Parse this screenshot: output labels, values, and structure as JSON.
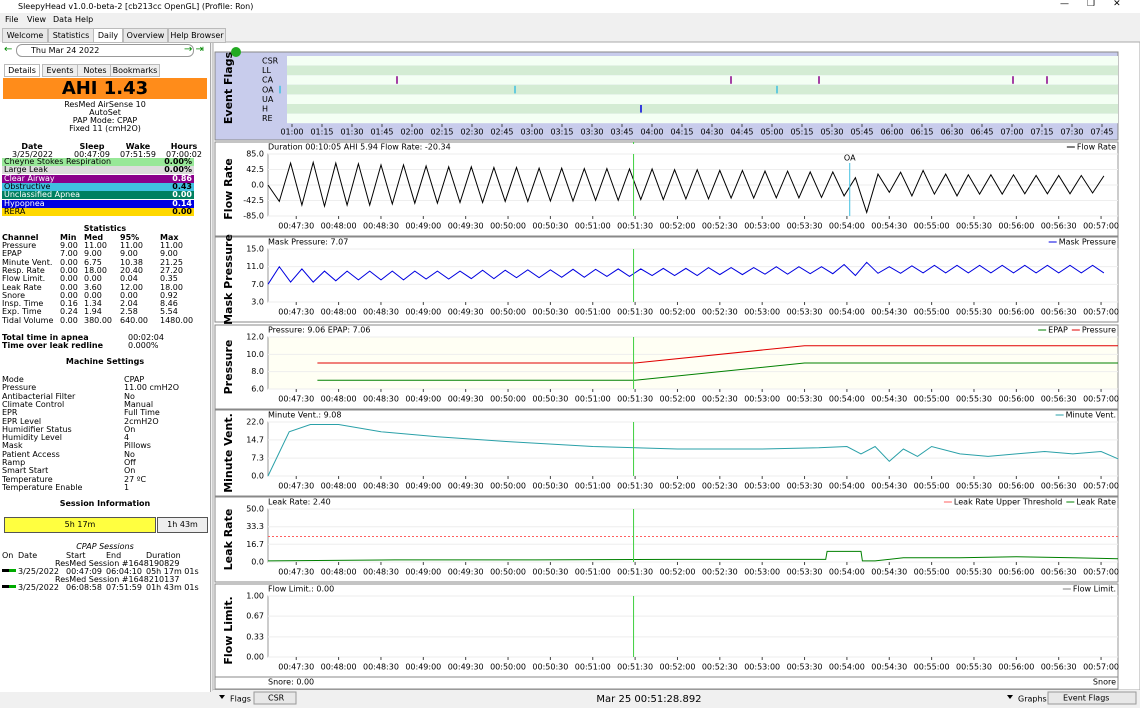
{
  "window": {
    "title": "SleepyHead v1.0.0-beta-2 [cb213cc OpenGL] (Profile: Ron)"
  },
  "menu": [
    "File",
    "View",
    "Data",
    "Help"
  ],
  "tabs": [
    "Welcome",
    "Statistics",
    "Daily",
    "Overview",
    "Help Browser"
  ],
  "left": {
    "date": "Thu Mar 24 2022",
    "subtabs": [
      "Details",
      "Events",
      "Notes",
      "Bookmarks"
    ],
    "ahi": "AHI 1.43",
    "device": [
      "ResMed AirSense 10",
      "AutoSet",
      "PAP Mode: CPAP",
      "Fixed 11 (cmH2O)"
    ],
    "sleep_table": {
      "header": [
        "Date",
        "Sleep",
        "Wake",
        "Hours"
      ],
      "row": [
        "3/25/2022",
        "00:47:09",
        "07:51:59",
        "07:00:02"
      ]
    },
    "events": [
      {
        "name": "Cheyne Stokes Respiration",
        "value": "0.00%",
        "color": "#98e898"
      },
      {
        "name": "Large Leak",
        "value": "0.00%",
        "color": "#dcdcdc"
      },
      {
        "name": "Clear Airway",
        "value": "0.86",
        "color": "#8b008b"
      },
      {
        "name": "Obstructive",
        "value": "0.43",
        "color": "#40c0e0"
      },
      {
        "name": "Unclassified Apnea",
        "value": "0.00",
        "color": "#008060"
      },
      {
        "name": "Hypopnea",
        "value": "0.14",
        "color": "#0000e0"
      },
      {
        "name": "RERA",
        "value": "0.00",
        "color": "#ffd800"
      }
    ],
    "statistics": {
      "title": "Statistics",
      "header": [
        "Channel",
        "Min",
        "Med",
        "95%",
        "Max"
      ],
      "rows": [
        [
          "Pressure",
          "9.00",
          "11.00",
          "11.00",
          "11.00"
        ],
        [
          "EPAP",
          "7.00",
          "9.00",
          "9.00",
          "9.00"
        ],
        [
          "Minute Vent.",
          "0.00",
          "6.75",
          "10.38",
          "21.25"
        ],
        [
          "Resp. Rate",
          "0.00",
          "18.00",
          "20.40",
          "27.20"
        ],
        [
          "Flow Limit.",
          "0.00",
          "0.00",
          "0.04",
          "0.35"
        ],
        [
          "Leak Rate",
          "0.00",
          "3.60",
          "12.00",
          "18.00"
        ],
        [
          "Snore",
          "0.00",
          "0.00",
          "0.00",
          "0.92"
        ],
        [
          "Insp. Time",
          "0.16",
          "1.34",
          "2.04",
          "8.46"
        ],
        [
          "Exp. Time",
          "0.24",
          "1.94",
          "2.58",
          "5.54"
        ],
        [
          "Tidal Volume",
          "0.00",
          "380.00",
          "640.00",
          "1480.00"
        ]
      ]
    },
    "totals": [
      [
        "Total time in apnea",
        "00:02:04"
      ],
      [
        "Time over leak redline",
        "0.000%"
      ]
    ],
    "machine": {
      "title": "Machine Settings",
      "rows": [
        [
          "Mode",
          "CPAP"
        ],
        [
          "Pressure",
          "11.00 cmH2O"
        ],
        [
          "Antibacterial Filter",
          "No"
        ],
        [
          "Climate Control",
          "Manual"
        ],
        [
          "EPR",
          "Full Time"
        ],
        [
          "EPR Level",
          "2cmH2O"
        ],
        [
          "Humidifier Status",
          "On"
        ],
        [
          "Humidity Level",
          "4"
        ],
        [
          "Mask",
          "Pillows"
        ],
        [
          "Patient Access",
          "No"
        ],
        [
          "Ramp",
          "Off"
        ],
        [
          "Smart Start",
          "On"
        ],
        [
          "Temperature",
          "27 ºC"
        ],
        [
          "Temperature Enable",
          "1"
        ]
      ]
    },
    "session_info": {
      "title": "Session Information",
      "bars": [
        "5h 17m",
        "1h 43m"
      ]
    },
    "sessions": {
      "title": "CPAP Sessions",
      "header": [
        "On",
        "Date",
        "Start",
        "End",
        "Duration"
      ],
      "rows": [
        {
          "name": "ResMed Session #1648190829",
          "cells": [
            "3/25/2022",
            "00:47:09",
            "06:04:10",
            "05h 17m 01s"
          ]
        },
        {
          "name": "ResMed Session #1648210137",
          "cells": [
            "3/25/2022",
            "06:08:58",
            "07:51:59",
            "01h 43m 01s"
          ]
        }
      ]
    }
  },
  "event_flags": {
    "label": "Event Flags",
    "rows": [
      "CSR",
      "LL",
      "CA",
      "OA",
      "UA",
      "H",
      "RE"
    ],
    "xlim": [
      57.5,
      473
    ],
    "xticks": [
      {
        "value": 60,
        "label": "01:00"
      },
      {
        "value": 75,
        "label": "01:15"
      },
      {
        "value": 90,
        "label": "01:30"
      },
      {
        "value": 105,
        "label": "01:45"
      },
      {
        "value": 120,
        "label": "02:00"
      },
      {
        "value": 135,
        "label": "02:15"
      },
      {
        "value": 150,
        "label": "02:30"
      },
      {
        "value": 165,
        "label": "02:45"
      },
      {
        "value": 180,
        "label": "03:00"
      },
      {
        "value": 195,
        "label": "03:15"
      },
      {
        "value": 210,
        "label": "03:30"
      },
      {
        "value": 225,
        "label": "03:45"
      },
      {
        "value": 240,
        "label": "04:00"
      },
      {
        "value": 255,
        "label": "04:15"
      },
      {
        "value": 270,
        "label": "04:30"
      },
      {
        "value": 285,
        "label": "04:45"
      },
      {
        "value": 300,
        "label": "05:00"
      },
      {
        "value": 315,
        "label": "05:15"
      },
      {
        "value": 330,
        "label": "05:30"
      },
      {
        "value": 345,
        "label": "05:45"
      },
      {
        "value": 360,
        "label": "06:00"
      },
      {
        "value": 375,
        "label": "06:15"
      },
      {
        "value": 390,
        "label": "06:30"
      },
      {
        "value": 405,
        "label": "06:45"
      },
      {
        "value": 420,
        "label": "07:00"
      },
      {
        "value": 435,
        "label": "07:15"
      },
      {
        "value": 450,
        "label": "07:30"
      },
      {
        "value": 465,
        "label": "07:45"
      }
    ],
    "flags": [
      {
        "row": 2,
        "t": 112.5,
        "color": "#8b008b"
      },
      {
        "row": 2,
        "t": 279.5,
        "color": "#8b008b"
      },
      {
        "row": 2,
        "t": 323.5,
        "color": "#8b008b"
      },
      {
        "row": 2,
        "t": 420.5,
        "color": "#8b008b"
      },
      {
        "row": 2,
        "t": 437.5,
        "color": "#8b008b"
      },
      {
        "row": 3,
        "t": 54,
        "color": "#40c0e0"
      },
      {
        "row": 3,
        "t": 171.5,
        "color": "#40c0e0"
      },
      {
        "row": 3,
        "t": 302.5,
        "color": "#40c0e0"
      },
      {
        "row": 5,
        "t": 234.5,
        "color": "#0000e0"
      }
    ]
  },
  "time_axis": {
    "xlim": [
      10,
      612
    ],
    "cursor": 268.9,
    "xticks": [
      {
        "value": 30,
        "label": "00:47:30"
      },
      {
        "value": 60,
        "label": "00:48:00"
      },
      {
        "value": 90,
        "label": "00:48:30"
      },
      {
        "value": 120,
        "label": "00:49:00"
      },
      {
        "value": 150,
        "label": "00:49:30"
      },
      {
        "value": 180,
        "label": "00:50:00"
      },
      {
        "value": 210,
        "label": "00:50:30"
      },
      {
        "value": 240,
        "label": "00:51:00"
      },
      {
        "value": 270,
        "label": "00:51:30"
      },
      {
        "value": 300,
        "label": "00:52:00"
      },
      {
        "value": 330,
        "label": "00:52:30"
      },
      {
        "value": 360,
        "label": "00:53:00"
      },
      {
        "value": 390,
        "label": "00:53:30"
      },
      {
        "value": 420,
        "label": "00:54:00"
      },
      {
        "value": 450,
        "label": "00:54:30"
      },
      {
        "value": 480,
        "label": "00:55:00"
      },
      {
        "value": 510,
        "label": "00:55:30"
      },
      {
        "value": 540,
        "label": "00:56:00"
      },
      {
        "value": 570,
        "label": "00:56:30"
      },
      {
        "value": 600,
        "label": "00:57:00"
      }
    ]
  },
  "graphs": [
    {
      "label": "Flow Rate",
      "header": "Duration 00:10:05 AHI 5.94 Flow Rate: -20.34",
      "ylim": [
        -85,
        85
      ],
      "yticks": [
        {
          "value": 85,
          "label": "85.0"
        },
        {
          "value": 42.5,
          "label": "42.5"
        },
        {
          "value": 0,
          "label": "0.0"
        },
        {
          "value": -42.5,
          "label": "-42.5"
        },
        {
          "value": -85,
          "label": "-85.0"
        }
      ],
      "annotation": {
        "text": "OA",
        "t": 422
      },
      "series": [
        {
          "name": "Flow Rate",
          "color": "#000000",
          "x": [
            10,
            18,
            26,
            34,
            42,
            50,
            58,
            66,
            74,
            82,
            90,
            98,
            106,
            114,
            122,
            130,
            138,
            146,
            154,
            162,
            170,
            178,
            186,
            194,
            202,
            210,
            218,
            226,
            234,
            242,
            250,
            258,
            266,
            274,
            282,
            290,
            298,
            306,
            314,
            322,
            330,
            338,
            346,
            354,
            362,
            370,
            378,
            386,
            394,
            402,
            410,
            418,
            426,
            434,
            442,
            450,
            458,
            466,
            474,
            482,
            490,
            498,
            506,
            514,
            522,
            530,
            538,
            546,
            554,
            562,
            570,
            578,
            586,
            594,
            602
          ],
          "values": [
            0,
            -45,
            60,
            -55,
            62,
            -58,
            60,
            -55,
            58,
            -55,
            55,
            -52,
            55,
            -50,
            52,
            -50,
            50,
            -48,
            50,
            -48,
            48,
            -45,
            48,
            -45,
            46,
            -44,
            46,
            -44,
            45,
            -42,
            45,
            -42,
            44,
            -40,
            44,
            -40,
            42,
            -38,
            42,
            -38,
            40,
            -36,
            40,
            -36,
            38,
            -35,
            38,
            -35,
            36,
            -34,
            36,
            -30,
            20,
            -75,
            30,
            -20,
            35,
            -30,
            40,
            -25,
            30,
            -30,
            28,
            -25,
            28,
            -25,
            28,
            -24,
            26,
            -24,
            26,
            -24,
            26,
            -22,
            25
          ]
        }
      ]
    },
    {
      "label": "Mask Pressure",
      "header": "Mask Pressure: 7.07",
      "ylim": [
        3,
        15
      ],
      "yticks": [
        {
          "value": 15,
          "label": "15.0"
        },
        {
          "value": 11,
          "label": "11.0"
        },
        {
          "value": 7,
          "label": "7.0"
        },
        {
          "value": 3,
          "label": "3.0"
        }
      ],
      "series": [
        {
          "name": "Mask Pressure",
          "color": "#0000e0",
          "x": [
            10,
            18,
            26,
            34,
            42,
            50,
            58,
            66,
            74,
            82,
            90,
            98,
            106,
            114,
            122,
            130,
            138,
            146,
            154,
            162,
            170,
            178,
            186,
            194,
            202,
            210,
            218,
            226,
            234,
            242,
            250,
            258,
            266,
            274,
            282,
            290,
            298,
            306,
            314,
            322,
            330,
            338,
            346,
            354,
            362,
            370,
            378,
            386,
            394,
            402,
            410,
            418,
            426,
            434,
            442,
            450,
            458,
            466,
            474,
            482,
            490,
            498,
            506,
            514,
            522,
            530,
            538,
            546,
            554,
            562,
            570,
            578,
            586,
            594,
            602
          ],
          "values": [
            7,
            11,
            7.5,
            10.5,
            7.5,
            10,
            7.8,
            10,
            8,
            10,
            8,
            10,
            8,
            10,
            8.2,
            10,
            8.2,
            10,
            8.3,
            10.2,
            8.3,
            10.2,
            8.5,
            10.3,
            8.5,
            10.3,
            8.6,
            10.4,
            8.6,
            10.4,
            8.8,
            10.5,
            8.8,
            10.5,
            9,
            10.6,
            9,
            10.6,
            9,
            10.8,
            9.2,
            10.8,
            9.2,
            10.8,
            9.3,
            11,
            9.3,
            11,
            9.4,
            11,
            9.4,
            11.5,
            9,
            12,
            9.5,
            11,
            9.5,
            11.2,
            9.6,
            11.3,
            9.6,
            11.3,
            9.6,
            11.3,
            9.6,
            11.3,
            9.6,
            11.3,
            9.6,
            11.3,
            9.6,
            11.3,
            9.6,
            11.3,
            9.6
          ]
        }
      ]
    },
    {
      "label": "Pressure",
      "header": "Pressure: 9.06 EPAP: 7.06",
      "ylim": [
        6,
        12
      ],
      "yticks": [
        {
          "value": 12,
          "label": "12.0"
        },
        {
          "value": 10,
          "label": "10.0"
        },
        {
          "value": 8,
          "label": "8.0"
        },
        {
          "value": 6,
          "label": "6.0"
        }
      ],
      "series": [
        {
          "name": "EPAP",
          "color": "#008000",
          "x": [
            45,
            270,
            390,
            612
          ],
          "values": [
            7,
            7,
            9,
            9
          ]
        },
        {
          "name": "Pressure",
          "color": "#e00000",
          "x": [
            45,
            270,
            390,
            612
          ],
          "values": [
            9,
            9,
            11,
            11
          ]
        }
      ]
    },
    {
      "label": "Minute Vent.",
      "header": "Minute Vent.: 9.08",
      "ylim": [
        0,
        22
      ],
      "yticks": [
        {
          "value": 22,
          "label": "22.0"
        },
        {
          "value": 14.7,
          "label": "14.7"
        },
        {
          "value": 7.3,
          "label": "7.3"
        },
        {
          "value": 0,
          "label": "0.0"
        }
      ],
      "series": [
        {
          "name": "Minute Vent.",
          "color": "#2aa0a8",
          "x": [
            10,
            25,
            40,
            60,
            90,
            130,
            180,
            240,
            300,
            360,
            400,
            420,
            430,
            440,
            450,
            460,
            470,
            480,
            500,
            520,
            540,
            560,
            580,
            600,
            612
          ],
          "values": [
            0,
            18,
            21,
            21,
            18,
            16,
            14,
            12,
            11,
            11,
            11.5,
            12,
            9,
            12,
            6,
            11,
            8,
            12,
            9,
            8,
            9,
            10,
            9,
            10,
            7
          ]
        }
      ]
    },
    {
      "label": "Leak Rate",
      "header": "Leak Rate: 2.40",
      "ylim": [
        0,
        50
      ],
      "yticks": [
        {
          "value": 50,
          "label": "50.0"
        },
        {
          "value": 33.3,
          "label": "33.3"
        },
        {
          "value": 16.7,
          "label": "16.7"
        },
        {
          "value": 0,
          "label": "0.0"
        }
      ],
      "threshold": {
        "name": "Leak Rate Upper Threshold",
        "value": 24,
        "color": "#ff6060"
      },
      "series": [
        {
          "name": "Leak Rate",
          "color": "#008000",
          "x": [
            10,
            100,
            200,
            300,
            400,
            405,
            406,
            430,
            431,
            440,
            460,
            500,
            540,
            580,
            612
          ],
          "values": [
            1,
            2,
            2,
            2.5,
            2.5,
            2.5,
            10,
            10,
            1,
            1,
            4,
            4,
            5,
            4,
            3
          ]
        }
      ]
    },
    {
      "label": "Flow Limit.",
      "header": "Flow Limit.: 0.00",
      "ylim": [
        0,
        1
      ],
      "yticks": [
        {
          "value": 1,
          "label": "1.00"
        },
        {
          "value": 0.67,
          "label": "0.67"
        },
        {
          "value": 0.33,
          "label": "0.33"
        },
        {
          "value": 0,
          "label": "0.00"
        }
      ],
      "series": [
        {
          "name": "Flow Limit.",
          "color": "#808080",
          "x": [],
          "values": []
        }
      ]
    }
  ],
  "snore": {
    "header": "Snore: 0.00",
    "legend": "Snore"
  },
  "bottom": {
    "flags": "Flags",
    "flag_select": "CSR",
    "time": "Mar 25 00:51:28.892",
    "graphs": "Graphs",
    "graph_select": "Event Flags"
  }
}
